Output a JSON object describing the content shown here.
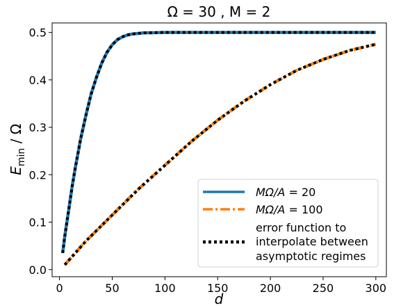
{
  "chart_data": {
    "type": "line",
    "title": "Ω = 30 , M = 2",
    "xlabel": "d",
    "ylabel": "E_min / Ω",
    "xlim": [
      -7,
      310
    ],
    "ylim": [
      -0.015,
      0.52
    ],
    "xticks": [
      0,
      50,
      100,
      150,
      200,
      250,
      300
    ],
    "yticks": [
      0.0,
      0.1,
      0.2,
      0.3,
      0.4,
      0.5
    ],
    "xtick_labels": [
      "0",
      "50",
      "100",
      "150",
      "200",
      "250",
      "300"
    ],
    "ytick_labels": [
      "0.0",
      "0.1",
      "0.2",
      "0.3",
      "0.4",
      "0.5"
    ],
    "grid": false,
    "legend_position": "lower-right",
    "series": [
      {
        "name": "MΩ/A = 20",
        "legend_prefix": "MΩ/A",
        "legend_value": "= 20",
        "color": "#1f77b4",
        "style": "solid",
        "x": [
          3,
          5,
          8,
          12,
          15,
          20,
          25,
          30,
          35,
          40,
          45,
          50,
          55,
          60,
          65,
          70,
          80,
          90,
          100,
          150,
          200,
          250,
          300
        ],
        "y": [
          0.035,
          0.07,
          0.115,
          0.175,
          0.215,
          0.275,
          0.325,
          0.37,
          0.405,
          0.435,
          0.458,
          0.474,
          0.485,
          0.491,
          0.495,
          0.497,
          0.499,
          0.4995,
          0.5,
          0.5,
          0.5,
          0.5,
          0.5
        ]
      },
      {
        "name": "MΩ/A = 100",
        "legend_prefix": "MΩ/A",
        "legend_value": "= 100",
        "color": "#ff7f0e",
        "style": "dashdot",
        "x": [
          5,
          25,
          50,
          75,
          100,
          125,
          150,
          175,
          200,
          225,
          250,
          275,
          300
        ],
        "y": [
          0.01,
          0.06,
          0.115,
          0.17,
          0.22,
          0.27,
          0.315,
          0.355,
          0.39,
          0.42,
          0.443,
          0.462,
          0.475
        ]
      },
      {
        "name": "error function to interpolate between asymptotic regimes",
        "legend_lines": [
          "error function to",
          "interpolate between",
          "asymptotic regimes"
        ],
        "color": "#000000",
        "style": "dotted",
        "overlay_of": [
          0,
          1
        ]
      }
    ]
  }
}
